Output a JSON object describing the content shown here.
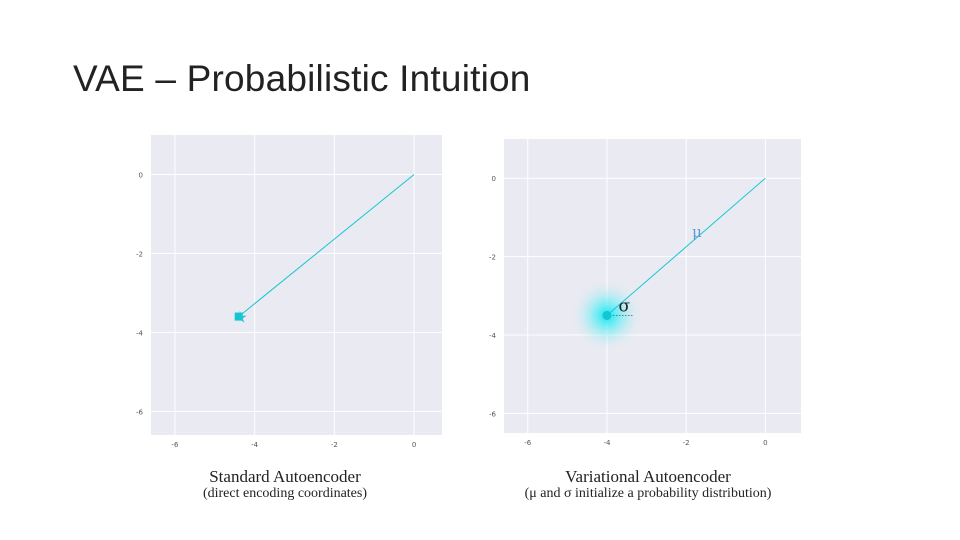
{
  "slide": {
    "title": "VAE – Probabilistic Intuition"
  },
  "colors": {
    "panel": "#e9eaf2",
    "grid": "#ffffff",
    "accent": "#14c6d4",
    "mu_label": "#5b9bd5"
  },
  "left_plot": {
    "caption_title": "Standard Autoencoder",
    "caption_sub": "(direct encoding coordinates)",
    "xticks": [
      "-6",
      "-4",
      "-2",
      "0"
    ],
    "yticks": [
      "0",
      "-2",
      "-4",
      "-6"
    ]
  },
  "right_plot": {
    "caption_title": "Variational Autoencoder",
    "caption_sub": "(μ and σ initialize a probability distribution)",
    "mu_label": "μ",
    "sigma_label": "σ",
    "xticks": [
      "-6",
      "-4",
      "-2",
      "0"
    ],
    "yticks": [
      "0",
      "-2",
      "-4",
      "-6"
    ]
  },
  "chart_data": [
    {
      "type": "line",
      "xlim": [
        -6.6,
        0.7
      ],
      "ylim": [
        -6.6,
        1.0
      ],
      "segment": {
        "from": [
          0,
          0
        ],
        "to": [
          -4.4,
          -3.6
        ]
      },
      "point": {
        "x": -4.4,
        "y": -3.6
      }
    },
    {
      "type": "line",
      "xlim": [
        -6.6,
        0.9
      ],
      "ylim": [
        -6.5,
        1.0
      ],
      "segment": {
        "from": [
          0,
          0
        ],
        "to": [
          -4.0,
          -3.5
        ]
      },
      "point": {
        "x": -4.0,
        "y": -3.5
      },
      "sigma": 0.65
    }
  ]
}
